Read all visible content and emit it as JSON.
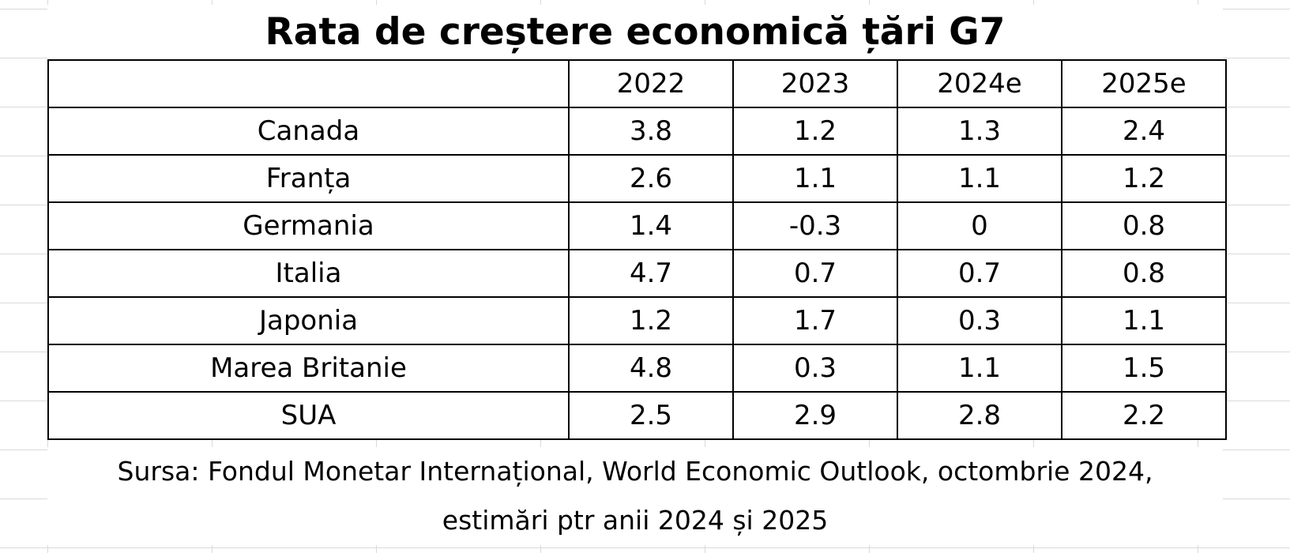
{
  "title": "Rata de creștere economică țări G7",
  "table": {
    "columns": [
      "",
      "2022",
      "2023",
      "2024e",
      "2025e"
    ],
    "rows": [
      [
        "Canada",
        "3.8",
        "1.2",
        "1.3",
        "2.4"
      ],
      [
        "Franța",
        "2.6",
        "1.1",
        "1.1",
        "1.2"
      ],
      [
        "Germania",
        "1.4",
        "-0.3",
        "0",
        "0.8"
      ],
      [
        "Italia",
        "4.7",
        "0.7",
        "0.7",
        "0.8"
      ],
      [
        "Japonia",
        "1.2",
        "1.7",
        "0.3",
        "1.1"
      ],
      [
        "Marea Britanie",
        "4.8",
        "0.3",
        "1.1",
        "1.5"
      ],
      [
        "SUA",
        "2.5",
        "2.9",
        "2.8",
        "2.2"
      ]
    ]
  },
  "source": {
    "line1": "Sursa: Fondul Monetar Internațional, World Economic Outlook, octombrie 2024,",
    "line2": "estimări ptr anii 2024 și 2025"
  }
}
